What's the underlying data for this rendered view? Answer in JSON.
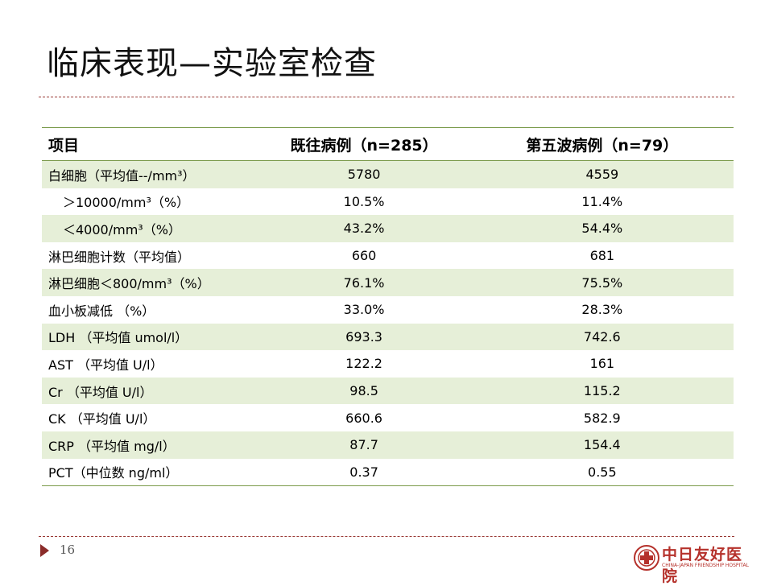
{
  "slide": {
    "title": "临床表现—实验室检查",
    "page_number": "16"
  },
  "table": {
    "headers": [
      "项目",
      "既往病例（n=285）",
      "第五波病例（n=79）"
    ],
    "rows": [
      {
        "item": "白细胞（平均值--/mm³）",
        "prev": "5780",
        "wave5": "4559"
      },
      {
        "item": "＞10000/mm³（%）",
        "prev": "10.5%",
        "wave5": "11.4%"
      },
      {
        "item": "＜4000/mm³（%）",
        "prev": "43.2%",
        "wave5": "54.4%"
      },
      {
        "item": "淋巴细胞计数（平均值）",
        "prev": "660",
        "wave5": "681"
      },
      {
        "item": "淋巴细胞＜800/mm³（%）",
        "prev": "76.1%",
        "wave5": "75.5%"
      },
      {
        "item": "血小板减低 （%）",
        "prev": "33.0%",
        "wave5": "28.3%"
      },
      {
        "item": "LDH （平均值 umol/l）",
        "prev": "693.3",
        "wave5": "742.6"
      },
      {
        "item": "AST （平均值 U/l）",
        "prev": "122.2",
        "wave5": "161"
      },
      {
        "item": "Cr （平均值 U/l）",
        "prev": "98.5",
        "wave5": "115.2"
      },
      {
        "item": "CK （平均值 U/l）",
        "prev": "660.6",
        "wave5": "582.9"
      },
      {
        "item": "CRP （平均值 mg/l）",
        "prev": "87.7",
        "wave5": "154.4"
      },
      {
        "item": "PCT（中位数 ng/ml）",
        "prev": "0.37",
        "wave5": "0.55"
      }
    ]
  },
  "logo": {
    "name_cn": "中日友好医院",
    "name_en": "CHINA-JAPAN FRIENDSHIP HOSPITAL",
    "color": "#b5312b"
  },
  "colors": {
    "row_shade": "#e6efd8",
    "table_rule": "#7a9a4a",
    "accent": "#8b2c2a"
  }
}
